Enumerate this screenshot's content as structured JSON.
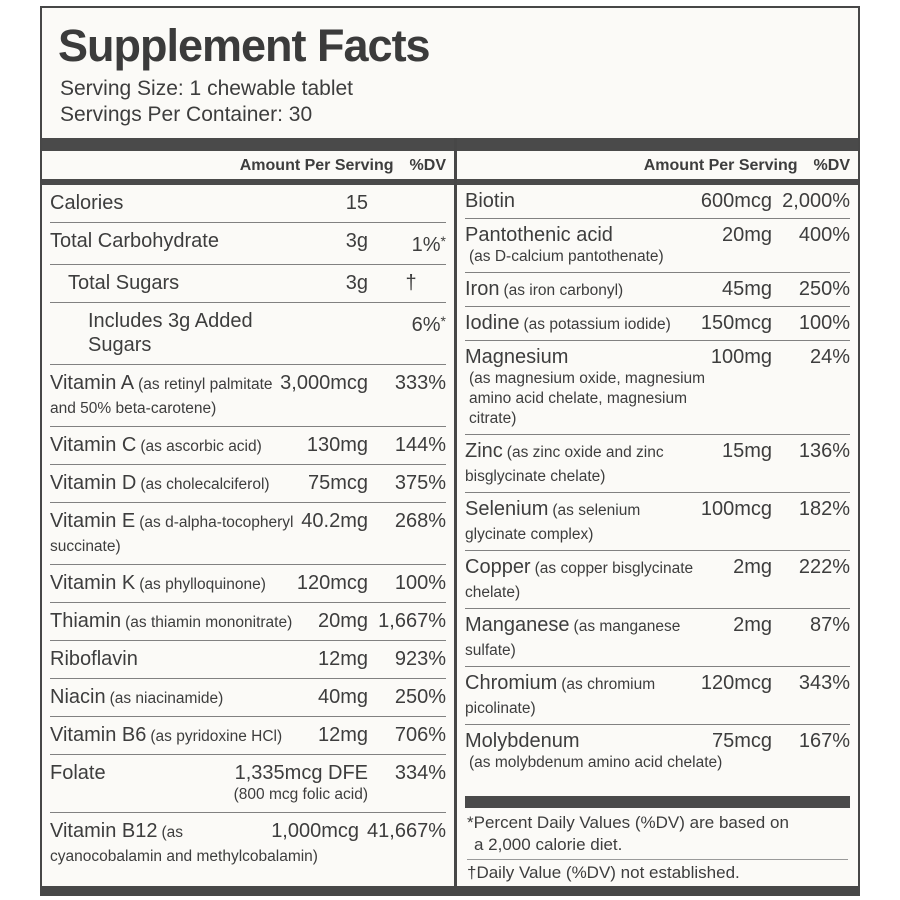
{
  "label": {
    "title": "Supplement Facts",
    "serving_size": "Serving Size: 1 chewable tablet",
    "servings_per_container": "Servings Per Container: 30",
    "column_header": {
      "amount": "Amount Per Serving",
      "dv": "%DV"
    },
    "colors": {
      "text": "#3d3d3d",
      "bars": "#4a4a4a",
      "border": "#474747",
      "separator": "#818181",
      "label_bg": "#fbfaf7"
    },
    "left_rows": [
      {
        "name": "Calories",
        "amount": "15",
        "dv": ""
      },
      {
        "name": "Total Carbohydrate",
        "amount": "3g",
        "dv": "1%",
        "dv_mark": "*"
      },
      {
        "name": "Total Sugars",
        "indent": 1,
        "amount": "3g",
        "dv": "†"
      },
      {
        "name": "Includes 3g Added Sugars",
        "indent": 2,
        "amount": "",
        "dv": "6%",
        "dv_mark": "*"
      },
      {
        "name": "Vitamin A",
        "desc": "(as retinyl palmitate and 50% beta-carotene)",
        "amount": "3,000mcg",
        "dv": "333%"
      },
      {
        "name": "Vitamin C",
        "desc": "(as ascorbic acid)",
        "amount": "130mg",
        "dv": "144%"
      },
      {
        "name": "Vitamin D",
        "desc": "(as cholecalciferol)",
        "amount": "75mcg",
        "dv": "375%"
      },
      {
        "name": "Vitamin E",
        "desc": "(as d-alpha-tocopheryl succinate)",
        "amount": "40.2mg",
        "dv": "268%"
      },
      {
        "name": "Vitamin K",
        "desc": "(as phylloquinone)",
        "amount": "120mcg",
        "dv": "100%"
      },
      {
        "name": "Thiamin",
        "desc": "(as thiamin mononitrate)",
        "amount": "20mg",
        "dv": "1,667%"
      },
      {
        "name": "Riboflavin",
        "amount": "12mg",
        "dv": "923%"
      },
      {
        "name": "Niacin",
        "desc": "(as niacinamide)",
        "amount": "40mg",
        "dv": "250%"
      },
      {
        "name": "Vitamin B6",
        "desc": "(as pyridoxine HCl)",
        "amount": "12mg",
        "dv": "706%"
      },
      {
        "name": "Folate",
        "amount": "1,335mcg DFE",
        "amount_sub": "(800 mcg folic acid)",
        "dv": "334%"
      },
      {
        "name": "Vitamin B12",
        "desc": "(as cyanocobalamin and methylcobalamin)",
        "amount": "1,000mcg",
        "dv": "41,667%"
      }
    ],
    "right_rows": [
      {
        "name": "Biotin",
        "amount": "600mcg",
        "dv": "2,000%"
      },
      {
        "name": "Pantothenic acid",
        "desc": "(as D-calcium pantothenate)",
        "desc_break": true,
        "amount": "20mg",
        "dv": "400%"
      },
      {
        "name": "Iron",
        "desc": "(as iron carbonyl)",
        "amount": "45mg",
        "dv": "250%"
      },
      {
        "name": "Iodine",
        "desc": "(as potassium iodide)",
        "amount": "150mcg",
        "dv": "100%"
      },
      {
        "name": "Magnesium",
        "desc": "(as magnesium oxide, magnesium amino acid chelate, magnesium citrate)",
        "desc_break": true,
        "amount": "100mg",
        "dv": "24%"
      },
      {
        "name": "Zinc",
        "desc": "(as zinc oxide and zinc bisglycinate chelate)",
        "amount": "15mg",
        "dv": "136%"
      },
      {
        "name": "Selenium",
        "desc": "(as selenium glycinate complex)",
        "amount": "100mcg",
        "dv": "182%"
      },
      {
        "name": "Copper",
        "desc": "(as copper bisglycinate chelate)",
        "amount": "2mg",
        "dv": "222%"
      },
      {
        "name": "Manganese",
        "desc": "(as manganese sulfate)",
        "amount": "2mg",
        "dv": "87%"
      },
      {
        "name": "Chromium",
        "desc": "(as chromium picolinate)",
        "amount": "120mcg",
        "dv": "343%"
      },
      {
        "name": "Molybdenum",
        "desc": "(as molybdenum amino acid chelate)",
        "desc_break": true,
        "amount": "75mcg",
        "dv": "167%"
      }
    ],
    "footnotes": {
      "line1": "*Percent Daily Values (%DV) are based on",
      "line2": "a 2,000 calorie diet.",
      "dagger": "†Daily Value (%DV) not established."
    }
  }
}
